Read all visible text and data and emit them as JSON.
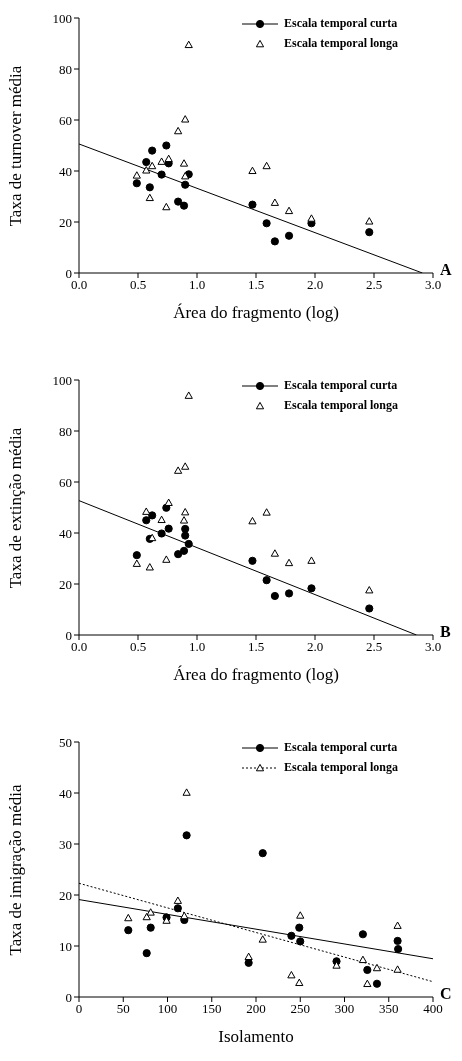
{
  "chart_data": [
    {
      "type": "scatter",
      "xlabel": "Área do fragmento (log)",
      "ylabel": "Taxa de turnover média",
      "annotations": [
        "A"
      ],
      "legend": "top right",
      "xlim": [
        0,
        3
      ],
      "ylim": [
        0,
        100
      ],
      "xticks": [
        {
          "value": 0,
          "label": "0.0"
        },
        {
          "value": 0.5,
          "label": "0.5"
        },
        {
          "value": 1,
          "label": "1.0"
        },
        {
          "value": 1.5,
          "label": "1.5"
        },
        {
          "value": 2,
          "label": "2.0"
        },
        {
          "value": 2.5,
          "label": "2.5"
        },
        {
          "value": 3,
          "label": "3.0"
        }
      ],
      "yticks": [
        0,
        20,
        40,
        60,
        80,
        100
      ],
      "series": [
        {
          "name": "Escala temporal curta",
          "color": "#000000",
          "marker": "circle",
          "line_style": "solid",
          "x": [
            0.49,
            0.57,
            0.62,
            0.6,
            0.7,
            0.74,
            0.76,
            0.84,
            0.89,
            0.9,
            0.93,
            1.47,
            1.59,
            1.66,
            1.78,
            1.97,
            2.46
          ],
          "values": [
            35.2,
            43.5,
            48,
            33.6,
            38.6,
            50,
            43,
            28,
            26.4,
            34.6,
            38.7,
            26.8,
            19.5,
            12.4,
            14.6,
            19.5,
            16
          ]
        },
        {
          "name": "Escala temporal longa",
          "color": "#000000",
          "marker": "triangle",
          "x": [
            0.49,
            0.57,
            0.62,
            0.6,
            0.7,
            0.74,
            0.76,
            0.84,
            0.89,
            0.9,
            0.9,
            0.93,
            1.47,
            1.59,
            1.66,
            1.78,
            1.97,
            2.46
          ],
          "values": [
            38.3,
            40.3,
            42,
            29.5,
            43.7,
            25.9,
            44.8,
            55.7,
            43,
            60.3,
            38,
            89.5,
            40.1,
            42,
            27.6,
            24.4,
            21.4,
            20.3
          ]
        },
        {
          "type": "line",
          "color": "#000000",
          "line_style": "solid",
          "x": [
            0,
            2.91
          ],
          "values": [
            50.6,
            0
          ]
        }
      ]
    },
    {
      "type": "scatter",
      "xlabel": "Área do fragmento (log)",
      "ylabel": "Taxa de extinção média",
      "annotations": [
        "B"
      ],
      "legend": "top right",
      "xlim": [
        0,
        3
      ],
      "ylim": [
        0,
        100
      ],
      "xticks": [
        {
          "value": 0,
          "label": "0.0"
        },
        {
          "value": 0.5,
          "label": "0.5"
        },
        {
          "value": 1,
          "label": "1.0"
        },
        {
          "value": 1.5,
          "label": "1.5"
        },
        {
          "value": 2,
          "label": "2.0"
        },
        {
          "value": 2.5,
          "label": "2.5"
        },
        {
          "value": 3,
          "label": "3.0"
        }
      ],
      "yticks": [
        0,
        20,
        40,
        60,
        80,
        100
      ],
      "series": [
        {
          "name": "Escala temporal curta",
          "color": "#000000",
          "marker": "circle",
          "line_style": "solid",
          "x": [
            0.49,
            0.57,
            0.62,
            0.6,
            0.7,
            0.74,
            0.76,
            0.84,
            0.89,
            0.9,
            0.9,
            0.93,
            1.47,
            1.59,
            1.66,
            1.78,
            1.97,
            2.46
          ],
          "values": [
            31.3,
            45,
            46.9,
            37.7,
            39.8,
            49.9,
            41.7,
            31.7,
            33,
            39,
            41.6,
            35.7,
            29.1,
            21.5,
            15.3,
            16.3,
            18.3,
            10.4
          ]
        },
        {
          "name": "Escala temporal longa",
          "color": "#000000",
          "marker": "triangle",
          "x": [
            0.49,
            0.57,
            0.62,
            0.6,
            0.7,
            0.74,
            0.76,
            0.84,
            0.89,
            0.9,
            0.9,
            0.93,
            1.47,
            1.59,
            1.66,
            1.78,
            1.97,
            2.46
          ],
          "values": [
            28,
            48.4,
            38.1,
            26.6,
            45.2,
            29.6,
            51.9,
            64.5,
            45,
            66.1,
            48.2,
            93.9,
            44.7,
            48.1,
            32,
            28.3,
            29.2,
            17.6
          ]
        },
        {
          "type": "line",
          "color": "#000000",
          "line_style": "solid",
          "x": [
            0,
            2.86
          ],
          "values": [
            52.7,
            0
          ]
        }
      ]
    },
    {
      "type": "scatter",
      "xlabel": "Isolamento",
      "ylabel": "Taxa de imigração média",
      "annotations": [
        "C"
      ],
      "legend": "top right",
      "xlim": [
        0,
        400
      ],
      "ylim": [
        0,
        50
      ],
      "xticks": [
        0,
        50,
        100,
        150,
        200,
        250,
        300,
        350,
        400
      ],
      "yticks": [
        0,
        10,
        20,
        30,
        40,
        50
      ],
      "series": [
        {
          "name": "Escala temporal curta",
          "color": "#000000",
          "marker": "circle",
          "line_style": "solid",
          "x": [
            55.7,
            76.5,
            81,
            98.9,
            111.7,
            119,
            121.6,
            207.6,
            191.7,
            240,
            248.9,
            250,
            291,
            320.8,
            325.8,
            336.7,
            360,
            360.6
          ],
          "values": [
            13.1,
            8.6,
            13.6,
            15.6,
            17.4,
            15.1,
            31.7,
            28.2,
            6.7,
            12,
            13.6,
            10.9,
            7,
            12.3,
            5.3,
            2.6,
            11,
            9.4
          ]
        },
        {
          "name": "Escala temporal longa",
          "color": "#000000",
          "marker": "triangle",
          "line_style": "dotted",
          "x": [
            55.7,
            76.5,
            81,
            98.9,
            111.7,
            119,
            121.6,
            191.7,
            207.6,
            240,
            248.9,
            250,
            291,
            320.8,
            325.8,
            336.7,
            360,
            360
          ],
          "values": [
            15.5,
            15.7,
            16.6,
            15,
            18.9,
            15.9,
            40.1,
            7.9,
            11.3,
            4.3,
            2.8,
            16,
            6.2,
            7.3,
            2.6,
            5.7,
            14,
            5.4
          ]
        },
        {
          "type": "line",
          "color": "#000000",
          "line_style": "solid",
          "x": [
            0,
            400
          ],
          "values": [
            19.1,
            7.5
          ]
        },
        {
          "type": "line",
          "color": "#000000",
          "line_style": "dotted",
          "x": [
            0,
            400
          ],
          "values": [
            22.3,
            3
          ]
        }
      ]
    }
  ]
}
